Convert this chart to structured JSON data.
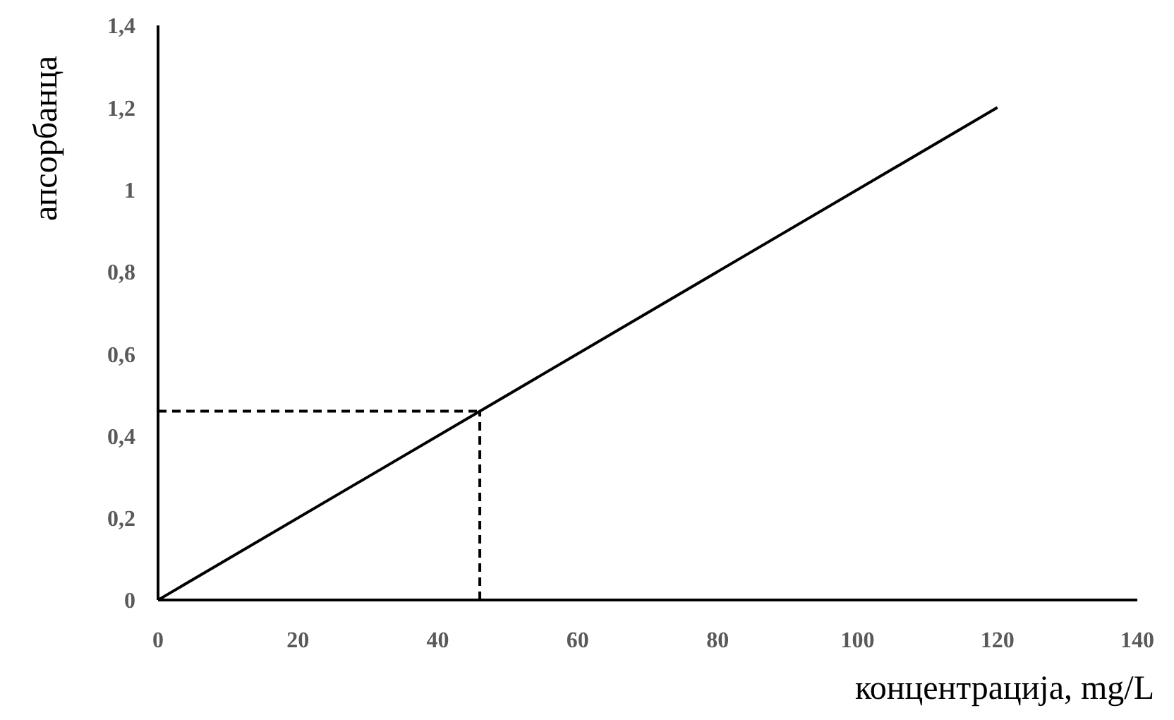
{
  "chart_data": {
    "type": "line",
    "xlabel": "концентрација, mg/L",
    "ylabel": "апсорбанца",
    "series": [
      {
        "color": "#000000",
        "x": [
          0,
          120
        ],
        "values": [
          0,
          1.2
        ]
      }
    ],
    "xlim": [
      0,
      140
    ],
    "xticks": [
      0,
      20,
      40,
      60,
      80,
      100,
      120,
      140
    ],
    "ylim": [
      0,
      1.4
    ],
    "yticks": [
      0,
      {
        "value": 0.2,
        "label": "0,2"
      },
      {
        "value": 0.4,
        "label": "0,4"
      },
      {
        "value": 0.6,
        "label": "0,6"
      },
      {
        "value": 0.8,
        "label": "0,8"
      },
      1,
      {
        "value": 1.2,
        "label": "1,2"
      },
      {
        "value": 1.4,
        "label": "1,4"
      }
    ],
    "ref_lines": [
      {
        "axis": "x",
        "value": 46,
        "color": "#000000",
        "line_style": "dashed"
      },
      {
        "axis": "y",
        "value": 0.46,
        "color": "#000000",
        "line_style": "dashed"
      }
    ],
    "grid": false,
    "legend": false,
    "marker": "none",
    "line_style": "solid"
  }
}
